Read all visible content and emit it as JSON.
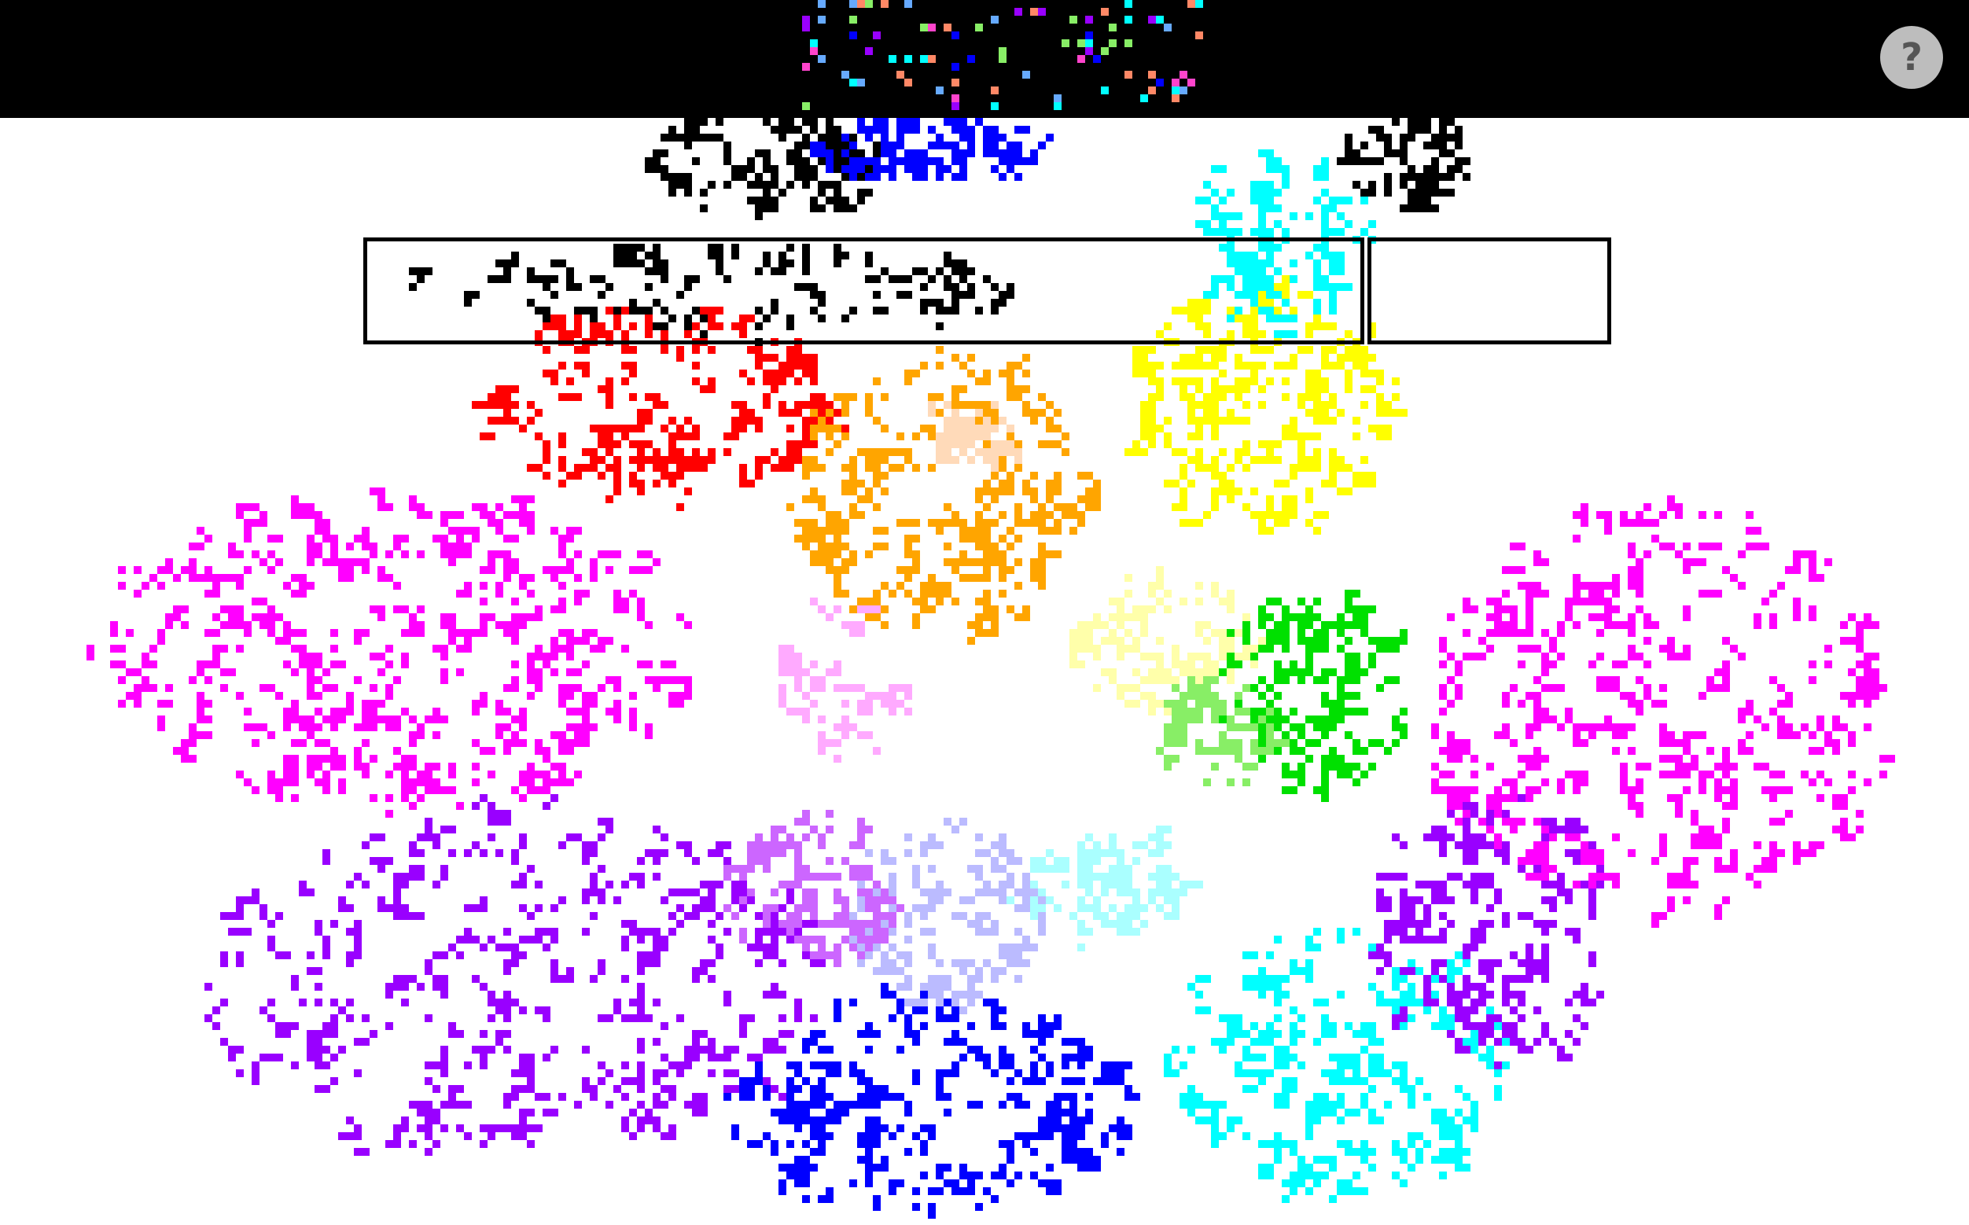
{
  "app": {
    "help_button_label": "?"
  },
  "palette": {
    "background": "#ffffff",
    "top_bar": "#000000",
    "help_button": "#bdbdbd",
    "help_glyph": "#555555"
  },
  "clusters": [
    {
      "name": "cluster-black-top",
      "color": "#000000"
    },
    {
      "name": "cluster-red",
      "color": "#ff0000"
    },
    {
      "name": "cluster-orange",
      "color": "#ffa500"
    },
    {
      "name": "cluster-peach",
      "color": "#ffdab9"
    },
    {
      "name": "cluster-yellow",
      "color": "#ffff00"
    },
    {
      "name": "cluster-pale-yellow",
      "color": "#ffffaa"
    },
    {
      "name": "cluster-green",
      "color": "#00e000"
    },
    {
      "name": "cluster-light-green",
      "color": "#88ee66"
    },
    {
      "name": "cluster-cyan",
      "color": "#00ffff"
    },
    {
      "name": "cluster-pale-cyan",
      "color": "#aaffff"
    },
    {
      "name": "cluster-blue",
      "color": "#0000ff"
    },
    {
      "name": "cluster-lavender",
      "color": "#bbbbff"
    },
    {
      "name": "cluster-purple",
      "color": "#9900ff"
    },
    {
      "name": "cluster-violet",
      "color": "#cc66ff"
    },
    {
      "name": "cluster-magenta",
      "color": "#ff00ff"
    },
    {
      "name": "cluster-pink",
      "color": "#ffaaff"
    },
    {
      "name": "cluster-salmon",
      "color": "#ff8866"
    },
    {
      "name": "cluster-sky",
      "color": "#66aaff"
    },
    {
      "name": "cluster-hot-pink",
      "color": "#ff44cc"
    }
  ]
}
